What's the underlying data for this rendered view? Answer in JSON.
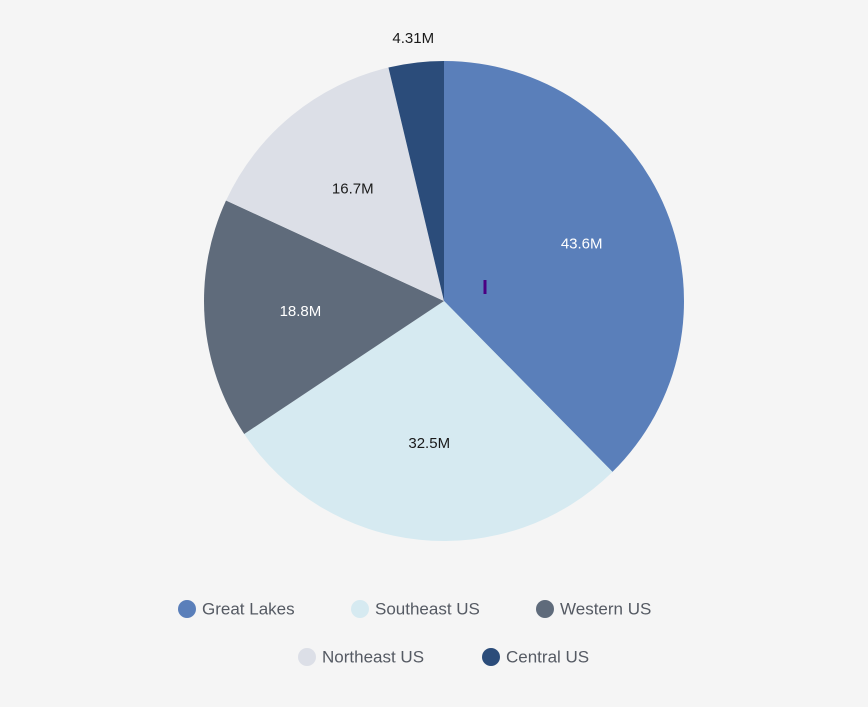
{
  "chart_data": {
    "type": "pie",
    "title": "",
    "slices": [
      {
        "name": "Great Lakes",
        "value": 43.6,
        "label": "43.6M",
        "color": "#5a7fba",
        "label_color": "#ffffff"
      },
      {
        "name": "Southeast US",
        "value": 32.5,
        "label": "32.5M",
        "color": "#d6eaf1",
        "label_color": "#1a1a1a"
      },
      {
        "name": "Western US",
        "value": 18.8,
        "label": "18.8M",
        "color": "#5f6b7b",
        "label_color": "#ffffff"
      },
      {
        "name": "Northeast US",
        "value": 16.7,
        "label": "16.7M",
        "color": "#dcdfe7",
        "label_color": "#1a1a1a"
      },
      {
        "name": "Central US",
        "value": 4.31,
        "label": "4.31M",
        "color": "#2b4c7a",
        "label_color": "#1a1a1a"
      }
    ],
    "start_angle": "12 o'clock",
    "direction": "clockwise",
    "legend_position": "bottom"
  },
  "colors": {
    "background": "#f5f5f5",
    "legend_text": "#555a63"
  }
}
